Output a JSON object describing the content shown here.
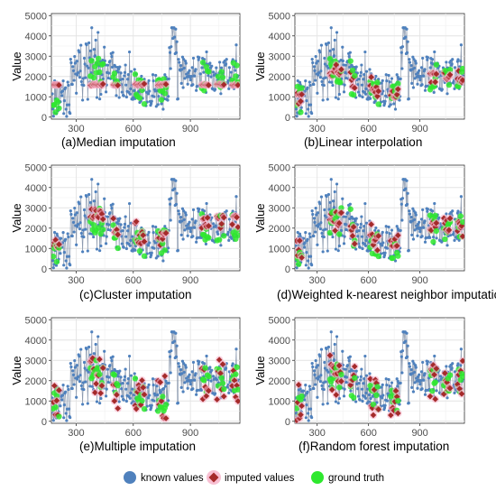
{
  "figure": {
    "legend": [
      {
        "key": "known",
        "label": "known values",
        "color": "#4f81bd",
        "shape": "circle"
      },
      {
        "key": "imputed",
        "label": "imputed values",
        "color": "#a52a2a",
        "halo": "#f6b0c8",
        "shape": "diamond"
      },
      {
        "key": "truth",
        "label": "ground truth",
        "color": "#2ee82e",
        "shape": "circle"
      }
    ]
  },
  "chart_data": [
    {
      "panel": "a",
      "type": "line",
      "caption": "(a)Median imputation",
      "ylabel": "Value",
      "xlim": [
        170,
        1160
      ],
      "ylim": [
        -100,
        5100
      ],
      "xticks": [
        300,
        600,
        900
      ],
      "xtick_labels": [
        "300",
        "600",
        "900"
      ],
      "yticks": [
        0,
        1000,
        2000,
        3000,
        4000,
        5000
      ],
      "ytick_labels": [
        "0",
        "1000",
        "2000",
        "3000",
        "4000",
        "5000"
      ],
      "gaps": [
        [
          180,
          215
        ],
        [
          375,
          445
        ],
        [
          495,
          520
        ],
        [
          610,
          660
        ],
        [
          730,
          775
        ],
        [
          960,
          1000
        ],
        [
          1040,
          1080
        ],
        [
          1120,
          1150
        ]
      ],
      "imputed_pattern": "median",
      "imputed_median": 1600,
      "grid": true,
      "legend_position": "bottom"
    },
    {
      "panel": "b",
      "type": "line",
      "caption": "(b)Linear interpolation",
      "ylabel": "Value",
      "xlim": [
        170,
        1160
      ],
      "ylim": [
        -100,
        5100
      ],
      "xticks": [
        300,
        600,
        900
      ],
      "xtick_labels": [
        "300",
        "600",
        "900"
      ],
      "yticks": [
        0,
        1000,
        2000,
        3000,
        4000,
        5000
      ],
      "ytick_labels": [
        "0",
        "1000",
        "2000",
        "3000",
        "4000",
        "5000"
      ],
      "gaps": [
        [
          180,
          215
        ],
        [
          375,
          445
        ],
        [
          495,
          520
        ],
        [
          610,
          660
        ],
        [
          730,
          775
        ],
        [
          960,
          1000
        ],
        [
          1040,
          1080
        ],
        [
          1120,
          1150
        ]
      ],
      "imputed_pattern": "linear",
      "grid": true
    },
    {
      "panel": "c",
      "type": "line",
      "caption": "(c)Cluster imputation",
      "ylabel": "Value",
      "xlim": [
        170,
        1160
      ],
      "ylim": [
        -100,
        5100
      ],
      "xticks": [
        300,
        600,
        900
      ],
      "xtick_labels": [
        "300",
        "600",
        "900"
      ],
      "yticks": [
        0,
        1000,
        2000,
        3000,
        4000,
        5000
      ],
      "ytick_labels": [
        "0",
        "1000",
        "2000",
        "3000",
        "4000",
        "5000"
      ],
      "gaps": [
        [
          180,
          215
        ],
        [
          375,
          445
        ],
        [
          495,
          520
        ],
        [
          610,
          660
        ],
        [
          730,
          775
        ],
        [
          960,
          1000
        ],
        [
          1040,
          1080
        ],
        [
          1120,
          1150
        ]
      ],
      "imputed_pattern": "cluster",
      "grid": true
    },
    {
      "panel": "d",
      "type": "line",
      "caption": "(d)Weighted k-nearest neighbor imputation",
      "ylabel": "Value",
      "xlim": [
        170,
        1160
      ],
      "ylim": [
        -100,
        5100
      ],
      "xticks": [
        300,
        600,
        900
      ],
      "xtick_labels": [
        "300",
        "600",
        "900"
      ],
      "yticks": [
        0,
        1000,
        2000,
        3000,
        4000,
        5000
      ],
      "ytick_labels": [
        "0",
        "1000",
        "2000",
        "3000",
        "4000",
        "5000"
      ],
      "gaps": [
        [
          180,
          215
        ],
        [
          375,
          445
        ],
        [
          495,
          520
        ],
        [
          610,
          660
        ],
        [
          730,
          775
        ],
        [
          960,
          1000
        ],
        [
          1040,
          1080
        ],
        [
          1120,
          1150
        ]
      ],
      "imputed_pattern": "knn",
      "grid": true
    },
    {
      "panel": "e",
      "type": "line",
      "caption": "(e)Multiple imputation",
      "ylabel": "Value",
      "xlim": [
        170,
        1160
      ],
      "ylim": [
        -100,
        5100
      ],
      "xticks": [
        300,
        600,
        900
      ],
      "xtick_labels": [
        "300",
        "600",
        "900"
      ],
      "yticks": [
        0,
        1000,
        2000,
        3000,
        4000,
        5000
      ],
      "ytick_labels": [
        "0",
        "1000",
        "2000",
        "3000",
        "4000",
        "5000"
      ],
      "gaps": [
        [
          180,
          215
        ],
        [
          375,
          445
        ],
        [
          495,
          520
        ],
        [
          610,
          660
        ],
        [
          730,
          775
        ],
        [
          960,
          1000
        ],
        [
          1040,
          1080
        ],
        [
          1120,
          1150
        ]
      ],
      "imputed_pattern": "multiple",
      "grid": true
    },
    {
      "panel": "f",
      "type": "line",
      "caption": "(f)Random forest imputation",
      "ylabel": "Value",
      "xlim": [
        170,
        1160
      ],
      "ylim": [
        -100,
        5100
      ],
      "xticks": [
        300,
        600,
        900
      ],
      "xtick_labels": [
        "300",
        "600",
        "900"
      ],
      "yticks": [
        0,
        1000,
        2000,
        3000,
        4000,
        5000
      ],
      "ytick_labels": [
        "0",
        "1000",
        "2000",
        "3000",
        "4000",
        "5000"
      ],
      "gaps": [
        [
          180,
          215
        ],
        [
          375,
          445
        ],
        [
          495,
          520
        ],
        [
          610,
          660
        ],
        [
          730,
          775
        ],
        [
          960,
          1000
        ],
        [
          1040,
          1080
        ],
        [
          1120,
          1150
        ]
      ],
      "imputed_pattern": "forest",
      "grid": true
    }
  ]
}
